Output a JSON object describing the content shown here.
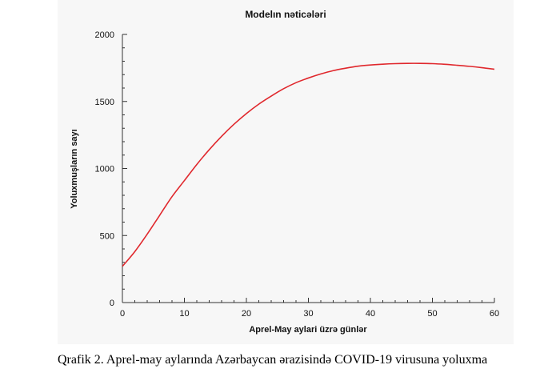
{
  "caption": {
    "label": "Qrafik 2.",
    "text": "Aprel-may aylarında Azərbaycan ərazisində COVID-19 virusuna yoluxma"
  },
  "chart_data": {
    "type": "line",
    "title": "Modelın nəticələri",
    "xlabel": "Aprel-May aylari üzrə günlər",
    "ylabel": "Yoluxmuşların sayı",
    "xlim": [
      0,
      60
    ],
    "ylim": [
      0,
      2000
    ],
    "xticks": [
      0,
      10,
      20,
      30,
      40,
      50,
      60
    ],
    "yticks": [
      0,
      500,
      1000,
      1500,
      2000
    ],
    "grid": false,
    "series": [
      {
        "color": "#e0282d",
        "x": [
          0,
          2,
          4,
          6,
          8,
          10,
          12,
          14,
          16,
          18,
          20,
          22,
          24,
          26,
          28,
          30,
          32,
          34,
          36,
          38,
          40,
          42,
          44,
          46,
          48,
          50,
          52,
          54,
          56,
          58,
          60
        ],
        "y": [
          270,
          380,
          510,
          650,
          790,
          910,
          1030,
          1140,
          1240,
          1330,
          1410,
          1480,
          1540,
          1595,
          1640,
          1675,
          1705,
          1730,
          1748,
          1763,
          1772,
          1778,
          1782,
          1784,
          1784,
          1782,
          1777,
          1770,
          1762,
          1752,
          1740
        ]
      }
    ]
  }
}
